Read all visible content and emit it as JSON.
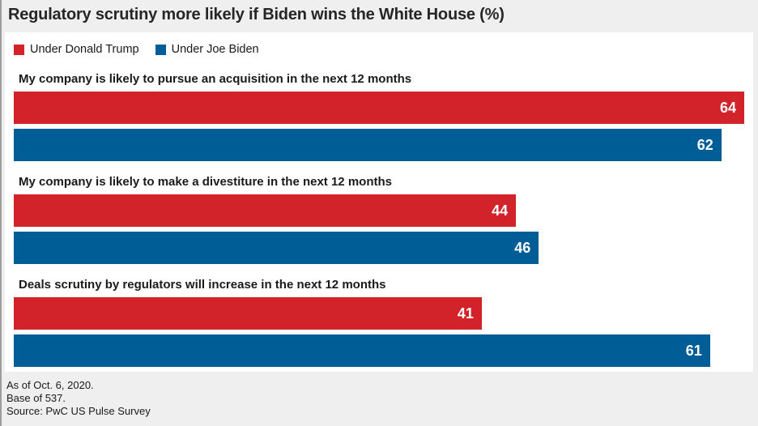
{
  "title": "Regulatory scrutiny more likely if Biden wins the White House (%)",
  "colors": {
    "trump_red": "#d2232a",
    "biden_blue": "#005d96",
    "page_background": "#efefef",
    "panel_background": "#ffffff"
  },
  "legend": {
    "items": [
      {
        "label": "Under Donald Trump",
        "color": "#d2232a"
      },
      {
        "label": "Under Joe Biden",
        "color": "#005d96"
      }
    ]
  },
  "chart_data": {
    "type": "bar",
    "orientation": "horizontal",
    "title": "Regulatory scrutiny more likely if Biden wins the White House (%)",
    "categories": [
      "My company is likely to pursue an acquisition in the next 12 months",
      "My company is likely to make a divestiture in the next 12 months",
      "Deals scrutiny by regulators will increase in the next 12 months"
    ],
    "series": [
      {
        "name": "Under Donald Trump",
        "color": "#d2232a",
        "values": [
          64,
          44,
          41
        ]
      },
      {
        "name": "Under Joe Biden",
        "color": "#005d96",
        "values": [
          62,
          46,
          61
        ]
      }
    ],
    "xlim": [
      0,
      64
    ],
    "unit": "%",
    "grid": false,
    "legend_position": "top-left",
    "value_labels": "inside-end"
  },
  "footer": {
    "lines": [
      "As of Oct. 6, 2020.",
      "Base of 537.",
      "Source: PwC US Pulse Survey"
    ]
  }
}
